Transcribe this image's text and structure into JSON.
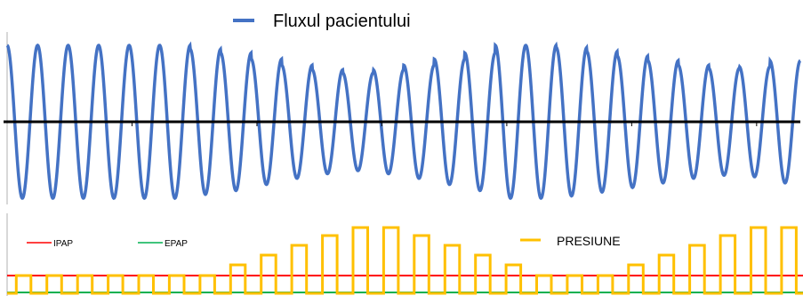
{
  "chart_data": [
    {
      "type": "line",
      "title": "",
      "legend": {
        "placement": "top-center",
        "entries": [
          {
            "name": "Fluxul pacientului",
            "color": "#4472c4"
          }
        ]
      },
      "series": [
        {
          "name": "Fluxul pacientului",
          "color": "#4472c4",
          "cycles": 26,
          "peak_amplitudes": [
            1.0,
            1.0,
            1.0,
            1.0,
            1.0,
            1.0,
            0.95,
            0.9,
            0.82,
            0.74,
            0.68,
            0.64,
            0.68,
            0.74,
            0.82,
            0.9,
            1.0,
            1.0,
            0.97,
            0.92,
            0.86,
            0.8,
            0.74,
            0.7,
            0.72,
            0.8
          ],
          "trough_amplitudes": [
            1.0,
            1.0,
            1.0,
            1.0,
            1.0,
            1.0,
            0.95,
            0.9,
            0.82,
            0.74,
            0.68,
            0.64,
            0.68,
            0.74,
            0.82,
            0.9,
            1.0,
            1.0,
            0.97,
            0.92,
            0.86,
            0.8,
            0.74,
            0.7,
            0.72,
            0.8
          ]
        }
      ],
      "baseline": 0,
      "grid": false
    },
    {
      "type": "line",
      "title": "",
      "legend": {
        "entries": [
          {
            "name": "IPAP",
            "color": "#ff0000",
            "placement": "left"
          },
          {
            "name": "EPAP",
            "color": "#00b050",
            "placement": "left"
          },
          {
            "name": "PRESIUNE",
            "color": "#ffc000",
            "placement": "top-right"
          }
        ]
      },
      "series": [
        {
          "name": "PRESIUNE",
          "color": "#ffc000",
          "pulse_levels": [
            1,
            1,
            1,
            1,
            1,
            1,
            1,
            2,
            3,
            4,
            5,
            6,
            6,
            5,
            4,
            3,
            2,
            1,
            1,
            1,
            2,
            3,
            4,
            5,
            6,
            6
          ]
        },
        {
          "name": "IPAP",
          "color": "#ff0000",
          "level": 1
        },
        {
          "name": "EPAP",
          "color": "#00b050",
          "level": 0
        }
      ],
      "grid": false
    }
  ]
}
